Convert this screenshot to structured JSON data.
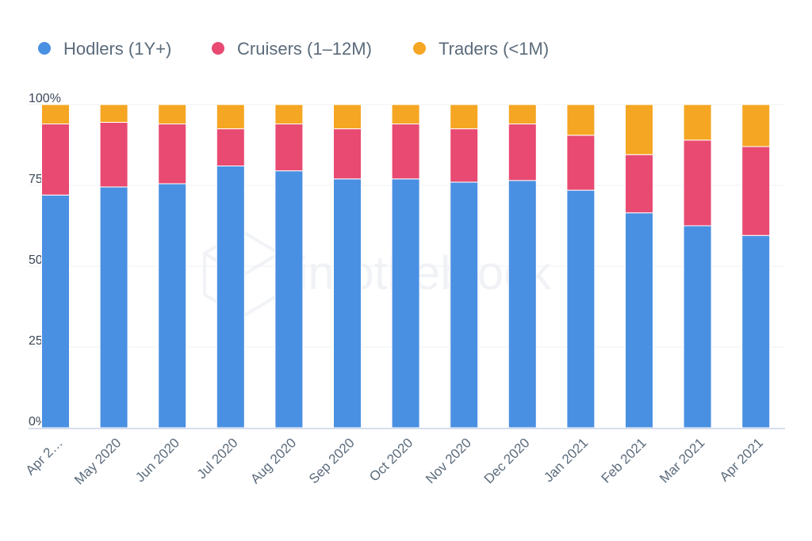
{
  "chart_data": {
    "type": "bar",
    "stacked": true,
    "percent": true,
    "categories": [
      "Apr 2…",
      "May 2020",
      "Jun 2020",
      "Jul 2020",
      "Aug 2020",
      "Sep 2020",
      "Oct 2020",
      "Nov 2020",
      "Dec 2020",
      "Jan 2021",
      "Feb 2021",
      "Mar 2021",
      "Apr 2021"
    ],
    "series": [
      {
        "name": "Hodlers (1Y+)",
        "color": "#4a90e2",
        "values": [
          72,
          74.5,
          75.5,
          81,
          79.5,
          77,
          77,
          76,
          76.5,
          73.5,
          66.5,
          62.5,
          59.5
        ]
      },
      {
        "name": "Cruisers (1–12M)",
        "color": "#e84a72",
        "values": [
          22,
          20,
          18.5,
          11.5,
          14.5,
          15.5,
          17,
          16.5,
          17.5,
          17,
          18,
          26.5,
          27.5
        ]
      },
      {
        "name": "Traders (<1M)",
        "color": "#f5a623",
        "values": [
          6,
          5.5,
          6,
          7.5,
          6,
          7.5,
          6,
          7.5,
          6,
          9.5,
          15.5,
          11,
          13
        ]
      }
    ],
    "y_ticks": [
      "0%",
      "25%",
      "50%",
      "75%",
      "100%"
    ],
    "ylim": [
      0,
      100
    ],
    "title": "",
    "xlabel": "",
    "ylabel": "",
    "legend_position": "top-left",
    "grid": true,
    "watermark": "intotheblock"
  }
}
